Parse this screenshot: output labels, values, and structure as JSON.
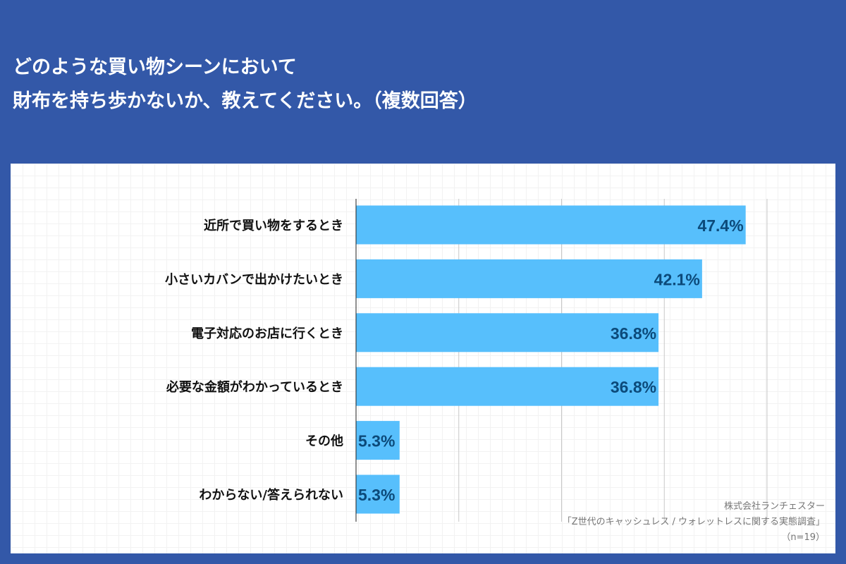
{
  "title": {
    "line1": "どのような買い物シーンにおいて",
    "line2": "財布を持ち歩かないか、教えてください。（複数回答）"
  },
  "chart_data": {
    "type": "bar",
    "orientation": "horizontal",
    "categories": [
      "近所で買い物をするとき",
      "小さいカバンで出かけたいとき",
      "電子対応のお店に行くとき",
      "必要な金額がわかっているとき",
      "その他",
      "わからない/答えられない"
    ],
    "values": [
      47.4,
      42.1,
      36.8,
      36.8,
      5.3,
      5.3
    ],
    "value_labels": [
      "47.4%",
      "42.1%",
      "36.8%",
      "36.8%",
      "5.3%",
      "5.3%"
    ],
    "xlim": [
      0,
      50
    ],
    "gridlines": [
      12.5,
      25,
      37.5,
      50
    ],
    "grid": true,
    "bar_color": "#57bffc",
    "label_color": "#0c4a7a"
  },
  "source": {
    "company": "株式会社ランチェスター",
    "survey": "「Z世代のキャッシュレス / ウォレットレスに関する実態調査」",
    "sample": "（n=19）"
  }
}
